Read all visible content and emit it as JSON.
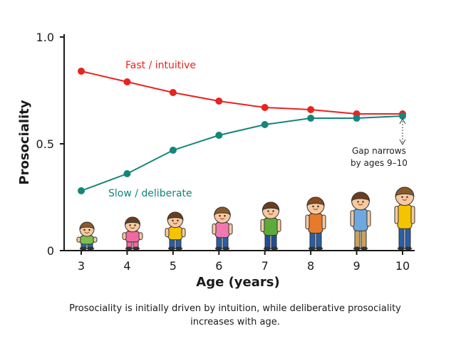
{
  "chart_data": {
    "type": "line",
    "x": [
      3,
      4,
      5,
      6,
      7,
      8,
      9,
      10
    ],
    "x_tick_labels": [
      "3",
      "4",
      "5",
      "6",
      "7",
      "8",
      "9",
      "10"
    ],
    "xlabel": "Age (years)",
    "ylabel": "Prosociality",
    "xlim": [
      3,
      10
    ],
    "ylim": [
      0,
      1.0
    ],
    "y_tick_labels": [
      "0",
      "0.5",
      "1.0"
    ],
    "grid": false,
    "series": [
      {
        "name": "Fast / intuitive",
        "color": "#e8241f",
        "x": [
          3,
          4,
          5,
          6,
          7,
          8,
          9,
          10
        ],
        "values": [
          0.84,
          0.79,
          0.74,
          0.7,
          0.67,
          0.66,
          0.64,
          0.64
        ]
      },
      {
        "name": "Slow / deliberate",
        "color": "#14857a",
        "x": [
          3,
          4,
          5,
          6,
          7,
          8,
          9,
          10
        ],
        "values": [
          0.28,
          0.36,
          0.47,
          0.54,
          0.59,
          0.62,
          0.62,
          0.63
        ]
      }
    ],
    "annotations": [
      "Gap narrows",
      "by ages 9–10"
    ]
  },
  "caption_lines": [
    "Prosociality is initially driven by intuition, while deliberative prosociality",
    "increases with age."
  ],
  "illustration": {
    "children": [
      {
        "age": 3,
        "shirt": "#7cbf4a",
        "pants": "#2b6db3",
        "hair": "#8a5a2b"
      },
      {
        "age": 4,
        "shirt": "#f06aa0",
        "pants": "#f06aa0",
        "hair": "#6b3d1e"
      },
      {
        "age": 5,
        "shirt": "#f5c400",
        "pants": "#2a5ea8",
        "hair": "#6b3d1e"
      },
      {
        "age": 6,
        "shirt": "#f07ab0",
        "pants": "#2a5ea8",
        "hair": "#8a5a2b"
      },
      {
        "age": 7,
        "shirt": "#5cab3a",
        "pants": "#1f4f94",
        "hair": "#6b3d1e"
      },
      {
        "age": 8,
        "shirt": "#e87a2b",
        "pants": "#2a5ea8",
        "hair": "#8a4a1e"
      },
      {
        "age": 9,
        "shirt": "#6fa8dc",
        "pants": "#c9a35a",
        "hair": "#6b3d1e"
      },
      {
        "age": 10,
        "shirt": "#f5c400",
        "pants": "#2a5ea8",
        "hair": "#8a5a2b"
      }
    ]
  }
}
